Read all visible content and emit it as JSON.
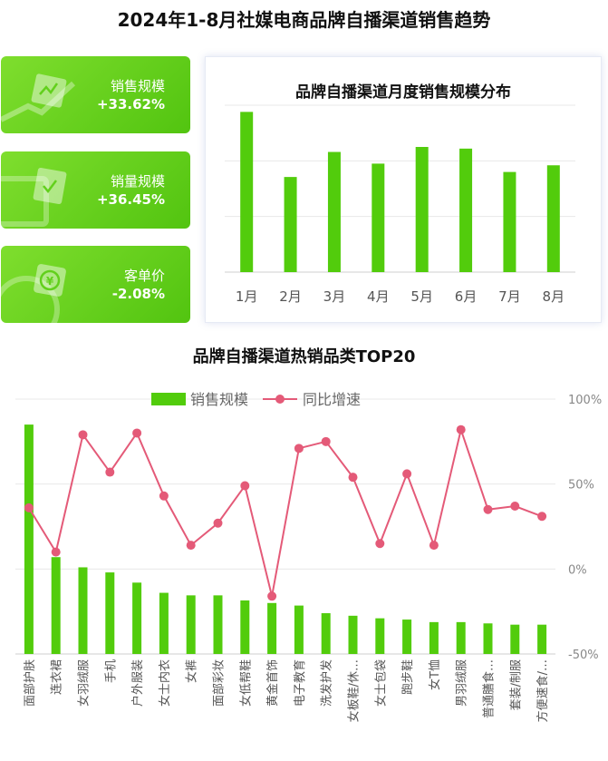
{
  "title": "2024年1-8月社媒电商品牌自播渠道销售趋势",
  "kpis": [
    {
      "label": "销售规模",
      "value": "+33.62%",
      "icon": "chart-icon"
    },
    {
      "label": "销量规模",
      "value": "+36.45%",
      "icon": "checklist-icon"
    },
    {
      "label": "客单价",
      "value": "-2.08%",
      "icon": "yuan-coin-icon"
    }
  ],
  "colors": {
    "bar": "#52cc0c",
    "line": "#e45a78",
    "kpi": "#5fcd18"
  },
  "chart_data": [
    {
      "type": "bar",
      "title": "品牌自播渠道月度销售规模分布",
      "categories": [
        "1月",
        "2月",
        "3月",
        "4月",
        "5月",
        "6月",
        "7月",
        "8月"
      ],
      "values": [
        96,
        57,
        72,
        65,
        75,
        74,
        60,
        64
      ],
      "ylim": [
        0,
        100
      ],
      "grid": true,
      "axis_labels": "none"
    },
    {
      "type": "bar+line",
      "title": "品牌自播渠道热销品类TOP20",
      "categories": [
        "面部护肤",
        "连衣裙",
        "女羽绒服",
        "手机",
        "户外服装",
        "女士内衣",
        "女裤",
        "面部彩妆",
        "女低帮鞋",
        "黄金首饰",
        "电子教育",
        "洗发护发",
        "女板鞋/休…",
        "女士包袋",
        "跑步鞋",
        "女T恤",
        "男羽绒服",
        "普通膳食…",
        "套装/制服",
        "方便速食/…"
      ],
      "series": [
        {
          "name": "销售规模",
          "type": "bar",
          "values": [
            90,
            38,
            34,
            32,
            28,
            24,
            23,
            23,
            21,
            20,
            19,
            16,
            15,
            14,
            13.5,
            12.5,
            12.5,
            12,
            11.5,
            11.5
          ]
        },
        {
          "name": "同比增速",
          "type": "line",
          "unit": "%",
          "values": [
            36,
            10,
            79,
            57,
            80,
            43,
            14,
            27,
            49,
            -16,
            71,
            75,
            54,
            15,
            56,
            14,
            82,
            35,
            37,
            31
          ]
        }
      ],
      "right_axis": {
        "ticks": [
          "100%",
          "50%",
          "0%",
          "-50%"
        ],
        "range": [
          -50,
          100
        ]
      },
      "left_axis_range": [
        0,
        100
      ],
      "grid": true,
      "legend": "top-center"
    }
  ]
}
